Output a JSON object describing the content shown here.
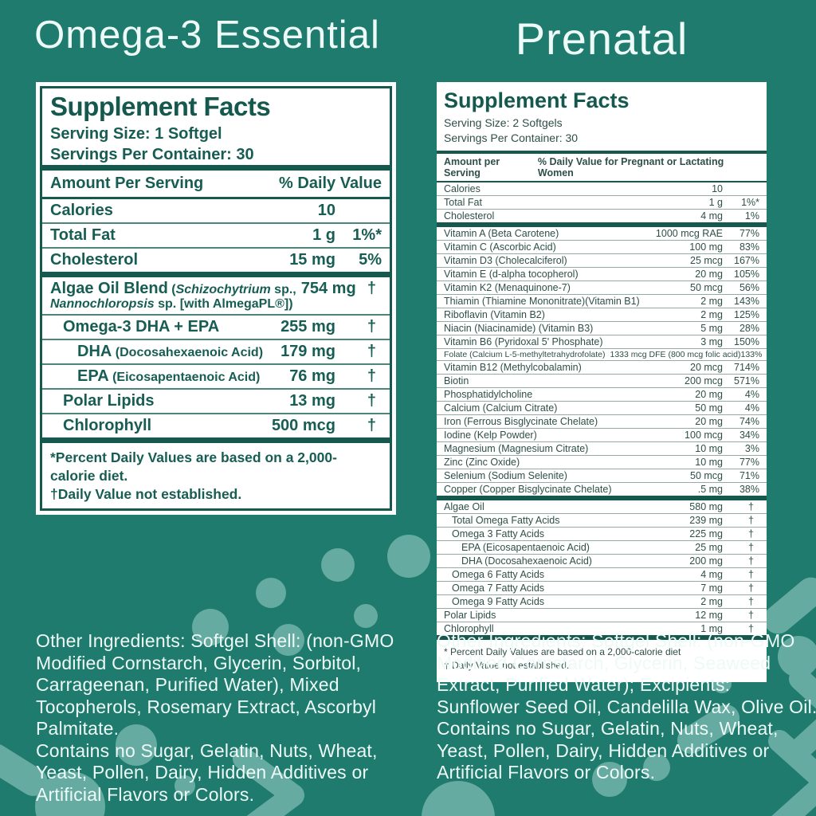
{
  "theme": {
    "background": "#1f7b6d",
    "blob": "#66aba1",
    "dark_teal": "#14584e",
    "left_text": "#175d53",
    "right_text": "#2f4f48",
    "panel_bg": "#ffffff",
    "title_text": "#eefaf7"
  },
  "left": {
    "title": "Omega-3 Essential",
    "panel": {
      "heading": "Supplement Facts",
      "serving_size": "Serving Size: 1 Softgel",
      "servings_per_container": "Servings Per Container: 30",
      "col_amount": "Amount Per Serving",
      "col_dv": "% Daily Value",
      "rows": [
        {
          "label": "Calories",
          "amount": "10",
          "dv": ""
        },
        {
          "label": "Total Fat",
          "amount": "1 g",
          "dv": "1%*"
        },
        {
          "label": "Cholesterol",
          "amount": "15 mg",
          "dv": "5%",
          "sep": "thick"
        },
        {
          "label": "Algae Oil Blend",
          "note_runs": [
            {
              "t": "(",
              "i": 0
            },
            {
              "t": "Schizochytrium",
              "i": 1
            },
            {
              "t": " sp.,",
              "i": 0
            }
          ],
          "line2_runs": [
            {
              "t": "Nannochloropsis",
              "i": 1
            },
            {
              "t": " sp. [with AlmegaPL®])",
              "i": 0
            }
          ],
          "amount": "754 mg",
          "dv": "†"
        },
        {
          "label": "Omega-3 DHA + EPA",
          "amount": "255 mg",
          "dv": "†",
          "indent": 1
        },
        {
          "label": "DHA",
          "note": "(Docosahexaenoic Acid)",
          "amount": "179 mg",
          "dv": "†",
          "indent": 2
        },
        {
          "label": "EPA",
          "note": "(Eicosapentaenoic Acid)",
          "amount": "76 mg",
          "dv": "†",
          "indent": 2
        },
        {
          "label": "Polar Lipids",
          "amount": "13 mg",
          "dv": "†",
          "indent": 1
        },
        {
          "label": "Chlorophyll",
          "amount": "500 mcg",
          "dv": "†",
          "indent": 1,
          "sep": "thick"
        }
      ],
      "footnote_1": "*Percent Daily Values are based on a 2,000-calorie diet.",
      "footnote_2": "†Daily Value not established."
    },
    "other_ingredients": "Other Ingredients: Softgel Shell: (non-GMO Modified Cornstarch, Glycerin, Sorbitol, Carrageenan, Purified Water), Mixed Tocopherols, Rosemary Extract, Ascorbyl Palmitate.",
    "contains": "Contains no Sugar, Gelatin, Nuts, Wheat, Yeast, Pollen, Dairy, Hidden Additives or Artificial Flavors or Colors."
  },
  "right": {
    "title": "Prenatal",
    "panel": {
      "heading": "Supplement Facts",
      "serving_size": "Serving Size: 2 Softgels",
      "servings_per_container": "Servings Per Container: 30",
      "col_amount": "Amount per Serving",
      "col_dv": "% Daily Value for Pregnant or Lactating Women",
      "rows": [
        {
          "label": "Calories",
          "amount": "10",
          "dv": ""
        },
        {
          "label": "Total Fat",
          "amount": "1 g",
          "dv": "1%*"
        },
        {
          "label": "Cholesterol",
          "amount": "4 mg",
          "dv": "1%",
          "sep": "thick"
        },
        {
          "label": "Vitamin A (Beta Carotene)",
          "amount": "1000 mcg RAE",
          "dv": "77%"
        },
        {
          "label": "Vitamin C (Ascorbic Acid)",
          "amount": "100 mg",
          "dv": "83%"
        },
        {
          "label": "Vitamin D3 (Cholecalciferol)",
          "amount": "25 mcg",
          "dv": "167%"
        },
        {
          "label": "Vitamin E (d-alpha tocopherol)",
          "amount": "20 mg",
          "dv": "105%"
        },
        {
          "label": "Vitamin K2 (Menaquinone-7)",
          "amount": "50 mcg",
          "dv": "56%"
        },
        {
          "label": "Thiamin (Thiamine Mononitrate)(Vitamin B1)",
          "amount": "2 mg",
          "dv": "143%"
        },
        {
          "label": "Riboflavin (Vitamin B2)",
          "amount": "2 mg",
          "dv": "125%"
        },
        {
          "label": "Niacin (Niacinamide) (Vitamin B3)",
          "amount": "5 mg",
          "dv": "28%"
        },
        {
          "label": "Vitamin B6 (Pyridoxal 5' Phosphate)",
          "amount": "3 mg",
          "dv": "150%"
        },
        {
          "label": "Folate (Calcium L-5-methyltetrahydrofolate)",
          "amount": "1333 mcg DFE (800 mcg folic acid)",
          "dv": "133%",
          "small": true
        },
        {
          "label": "Vitamin B12 (Methylcobalamin)",
          "amount": "20 mcg",
          "dv": "714%"
        },
        {
          "label": "Biotin",
          "amount": "200 mcg",
          "dv": "571%"
        },
        {
          "label": "Phosphatidylcholine",
          "amount": "20 mg",
          "dv": "4%"
        },
        {
          "label": "Calcium (Calcium Citrate)",
          "amount": "50 mg",
          "dv": "4%"
        },
        {
          "label": "Iron (Ferrous Bisglycinate Chelate)",
          "amount": "20 mg",
          "dv": "74%"
        },
        {
          "label": "Iodine (Kelp Powder)",
          "amount": "100 mcg",
          "dv": "34%"
        },
        {
          "label": "Magnesium (Magnesium Citrate)",
          "amount": "10 mg",
          "dv": "3%"
        },
        {
          "label": "Zinc (Zinc Oxide)",
          "amount": "10 mg",
          "dv": "77%"
        },
        {
          "label": "Selenium (Sodium Selenite)",
          "amount": "50 mcg",
          "dv": "71%"
        },
        {
          "label": "Copper (Copper Bisglycinate Chelate)",
          "amount": ".5 mg",
          "dv": "38%",
          "sep": "thick"
        },
        {
          "label": "Algae Oil",
          "amount": "580 mg",
          "dv": "†"
        },
        {
          "label": "Total Omega Fatty Acids",
          "amount": "239 mg",
          "dv": "†",
          "indent": 1
        },
        {
          "label": "Omega 3 Fatty Acids",
          "amount": "225 mg",
          "dv": "†",
          "indent": 1
        },
        {
          "label": "EPA (Eicosapentaenoic Acid)",
          "amount": "25 mg",
          "dv": "†",
          "indent": 2
        },
        {
          "label": "DHA (Docosahexaenoic Acid)",
          "amount": "200 mg",
          "dv": "†",
          "indent": 2
        },
        {
          "label": "Omega 6 Fatty Acids",
          "amount": "4 mg",
          "dv": "†",
          "indent": 1
        },
        {
          "label": "Omega 7 Fatty Acids",
          "amount": "7 mg",
          "dv": "†",
          "indent": 1
        },
        {
          "label": "Omega 9 Fatty Acids",
          "amount": "2 mg",
          "dv": "†",
          "indent": 1
        },
        {
          "label": "Polar Lipids",
          "amount": "12 mg",
          "dv": "†"
        },
        {
          "label": "Chlorophyll",
          "amount": "1 mg",
          "dv": "†",
          "sep": "thick"
        }
      ],
      "footnote_1": "*  Percent Daily Values are based on a 2,000-calorie diet",
      "footnote_2": "†  Daily Value not established."
    },
    "other_ingredients": "Other Ingredients: Softgel Shell: (non-GMO Modified Cornstarch, Glycerin, Seaweed Extract, Purified Water); Excipients: Sunflower Seed Oil, Candelilla Wax, Olive Oil.",
    "contains": "Contains no Sugar, Gelatin, Nuts, Wheat, Yeast, Pollen, Dairy, Hidden Additives or Artificial Flavors or Colors."
  }
}
